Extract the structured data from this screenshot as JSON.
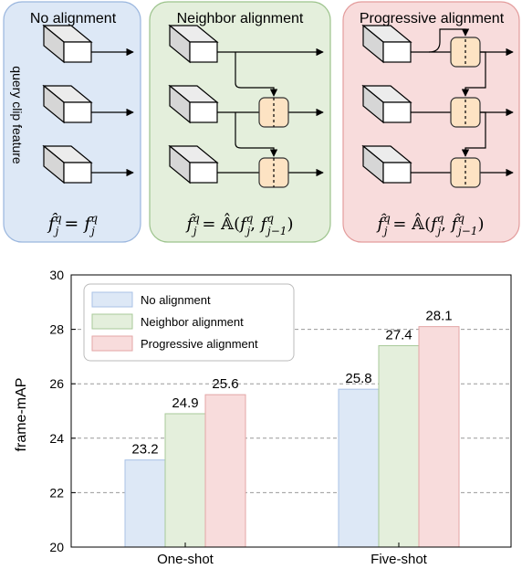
{
  "panels": [
    {
      "title": "No alignment",
      "side_label": "query clip feature",
      "formula": {
        "lhs": "f̂",
        "lhs_sup": "q",
        "lhs_sub": "j",
        "eq": " = ",
        "rhs": "f",
        "rhs_sup": "q",
        "rhs_sub": "j"
      },
      "colors": {
        "fill": "#dde8f6",
        "stroke": "#9ab6de"
      }
    },
    {
      "title": "Neighbor alignment",
      "formula": {
        "lhs": "f̂",
        "lhs_sup": "q",
        "lhs_sub": "j",
        "eq": " = ",
        "op": "𝔸̂(",
        "a": "f",
        "a_sup": "q",
        "a_sub": "j",
        "comma": ", ",
        "b": "f",
        "b_sup": "q",
        "b_sub": "j−1",
        "close": ")"
      },
      "colors": {
        "fill": "#e4efdc",
        "stroke": "#9cc38c"
      }
    },
    {
      "title": "Progressive alignment",
      "formula": {
        "lhs": "f̂",
        "lhs_sup": "q",
        "lhs_sub": "j",
        "eq": " = ",
        "op": "𝔸̂(",
        "a": "f",
        "a_sup": "q",
        "a_sub": "j",
        "comma": ", ",
        "b": "f̂",
        "b_sup": "q",
        "b_sub": "j−1",
        "close": ")"
      },
      "colors": {
        "fill": "#f8dcdc",
        "stroke": "#e39c9c"
      }
    }
  ],
  "diagram_colors": {
    "cube_top": "#ececec",
    "cube_side": "#d6d6d6",
    "cube_front": "#ffffff",
    "align_box": "#fde3c3",
    "align_stroke": "#333333"
  },
  "chart_data": {
    "type": "bar",
    "categories": [
      "One-shot",
      "Five-shot"
    ],
    "series": [
      {
        "name": "No alignment",
        "values": [
          23.2,
          25.8
        ],
        "labels": [
          "23.2",
          "25.8"
        ],
        "color": "#dde8f6",
        "stroke": "#a9c2e6"
      },
      {
        "name": "Neighbor alignment",
        "values": [
          24.9,
          27.4
        ],
        "labels": [
          "24.9",
          "27.4"
        ],
        "color": "#e4efdc",
        "stroke": "#a8c99a"
      },
      {
        "name": "Progressive alignment",
        "values": [
          25.6,
          28.1
        ],
        "labels": [
          "25.6",
          "28.1"
        ],
        "color": "#f8dcdc",
        "stroke": "#e3a6a6"
      }
    ],
    "ylabel": "frame-mAP",
    "ylim": [
      20,
      30
    ],
    "yticks": [
      "20",
      "22",
      "24",
      "26",
      "28",
      "30"
    ],
    "grid": true,
    "legend_position": "top-left"
  }
}
